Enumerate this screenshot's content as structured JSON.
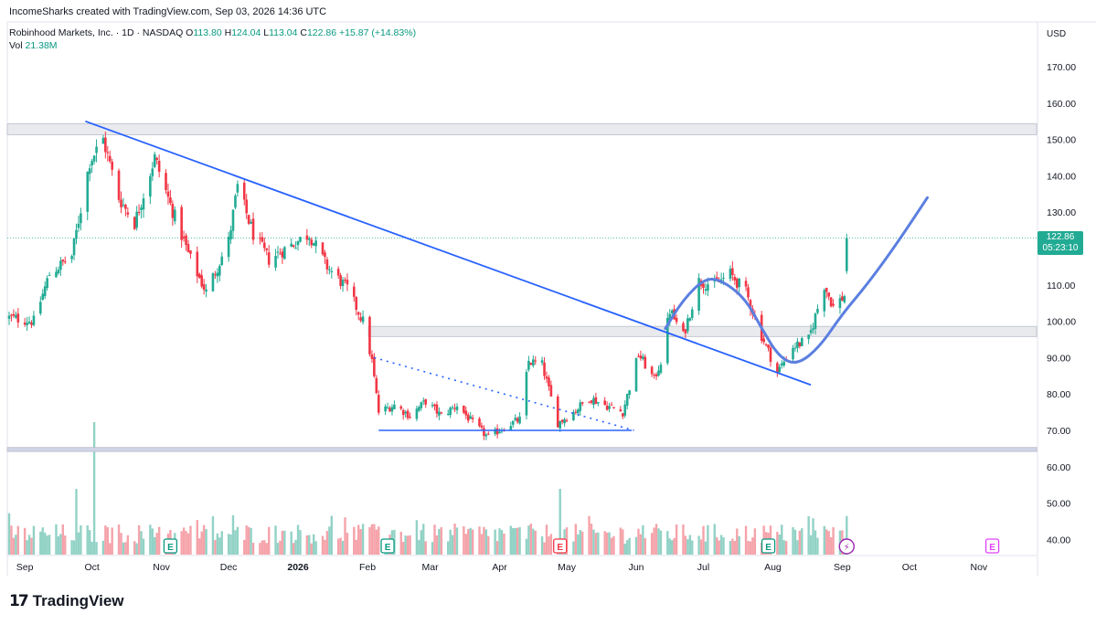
{
  "header": {
    "attribution": "IncomeSharks created with TradingView.com, Sep 03, 2026 14:36 UTC"
  },
  "legend": {
    "symbol": "Robinhood Markets, Inc. · 1D · NASDAQ",
    "o_label": "O",
    "o_value": "113.80",
    "h_label": "H",
    "h_value": "124.04",
    "l_label": "L",
    "l_value": "113.04",
    "c_label": "C",
    "c_value": "122.86",
    "change": "+15.87 (+14.83%)",
    "vol_label": "Vol",
    "vol_value": "21.38M"
  },
  "price_axis": {
    "currency": "USD",
    "last_price": "122.86",
    "countdown": "05:23:10"
  },
  "brand": {
    "name": "TradingView"
  },
  "colors": {
    "up": "#22ab94",
    "down": "#f23645",
    "trendline": "#2962ff",
    "freehand": "#5b7fe0",
    "zone": "#d1d4dc",
    "earnings": "#089981",
    "dividend": "#e040fb"
  },
  "chart_data": {
    "type": "candlestick",
    "symbol": "Robinhood Markets, Inc.",
    "interval": "1D",
    "exchange": "NASDAQ",
    "y_axis": {
      "ticks": [
        40,
        50,
        60,
        70,
        80,
        90,
        100,
        110,
        120,
        130,
        140,
        150,
        160,
        170
      ],
      "tick_labels": [
        "40.00",
        "50.00",
        "60.00",
        "70.00",
        "80.00",
        "90.00",
        "100.00",
        "110.00",
        "120.00",
        "130.00",
        "140.00",
        "150.00",
        "160.00",
        "170.00"
      ],
      "ylim": [
        36,
        178
      ]
    },
    "x_axis": {
      "labels": [
        "Sep",
        "Oct",
        "Nov",
        "Dec",
        "2026",
        "Feb",
        "Mar",
        "Apr",
        "May",
        "Jun",
        "Jul",
        "Aug",
        "Sep",
        "Oct",
        "Nov"
      ],
      "first_label": "Sep",
      "first_label_index": 5,
      "months": [
        "2025-09",
        "2025-10",
        "2025-11",
        "2025-12",
        "2026-01",
        "2026-02",
        "2026-03",
        "2026-04",
        "2026-05",
        "2026-06",
        "2026-07",
        "2026-08",
        "2026-09",
        "2026-10",
        "2026-11"
      ]
    },
    "anchors": [
      {
        "date": "2025-08-25",
        "close": 101
      },
      {
        "date": "2025-09-05",
        "close": 100
      },
      {
        "date": "2025-09-12",
        "close": 113
      },
      {
        "date": "2025-09-22",
        "close": 118
      },
      {
        "date": "2025-09-30",
        "close": 144
      },
      {
        "date": "2025-10-06",
        "close": 150
      },
      {
        "date": "2025-10-13",
        "close": 134
      },
      {
        "date": "2025-10-20",
        "close": 127
      },
      {
        "date": "2025-10-29",
        "close": 145
      },
      {
        "date": "2025-11-05",
        "close": 132
      },
      {
        "date": "2025-11-14",
        "close": 117
      },
      {
        "date": "2025-11-21",
        "close": 108
      },
      {
        "date": "2025-12-01",
        "close": 122
      },
      {
        "date": "2025-12-05",
        "close": 137
      },
      {
        "date": "2025-12-12",
        "close": 124
      },
      {
        "date": "2025-12-19",
        "close": 117
      },
      {
        "date": "2025-12-29",
        "close": 121
      },
      {
        "date": "2026-01-06",
        "close": 124
      },
      {
        "date": "2026-01-14",
        "close": 115
      },
      {
        "date": "2026-01-23",
        "close": 109
      },
      {
        "date": "2026-01-30",
        "close": 100
      },
      {
        "date": "2026-02-03",
        "close": 89
      },
      {
        "date": "2026-02-06",
        "close": 75
      },
      {
        "date": "2026-02-13",
        "close": 77
      },
      {
        "date": "2026-02-20",
        "close": 74
      },
      {
        "date": "2026-02-27",
        "close": 78
      },
      {
        "date": "2026-03-06",
        "close": 74
      },
      {
        "date": "2026-03-13",
        "close": 77
      },
      {
        "date": "2026-03-20",
        "close": 72
      },
      {
        "date": "2026-03-27",
        "close": 68
      },
      {
        "date": "2026-04-03",
        "close": 71
      },
      {
        "date": "2026-04-10",
        "close": 73
      },
      {
        "date": "2026-04-14",
        "close": 89
      },
      {
        "date": "2026-04-20",
        "close": 88
      },
      {
        "date": "2026-04-27",
        "close": 72
      },
      {
        "date": "2026-05-04",
        "close": 75
      },
      {
        "date": "2026-05-11",
        "close": 79
      },
      {
        "date": "2026-05-18",
        "close": 77
      },
      {
        "date": "2026-05-26",
        "close": 75
      },
      {
        "date": "2026-06-02",
        "close": 91
      },
      {
        "date": "2026-06-09",
        "close": 84
      },
      {
        "date": "2026-06-12",
        "close": 89
      },
      {
        "date": "2026-06-16",
        "close": 103
      },
      {
        "date": "2026-06-22",
        "close": 96
      },
      {
        "date": "2026-06-29",
        "close": 111
      },
      {
        "date": "2026-07-06",
        "close": 110
      },
      {
        "date": "2026-07-13",
        "close": 113
      },
      {
        "date": "2026-07-20",
        "close": 108
      },
      {
        "date": "2026-07-27",
        "close": 96
      },
      {
        "date": "2026-08-03",
        "close": 86
      },
      {
        "date": "2026-08-10",
        "close": 93
      },
      {
        "date": "2026-08-17",
        "close": 95
      },
      {
        "date": "2026-08-24",
        "close": 110
      },
      {
        "date": "2026-08-28",
        "close": 104
      },
      {
        "date": "2026-09-02",
        "close": 107
      },
      {
        "date": "2026-09-03",
        "close": 122.86
      }
    ],
    "last_candle": {
      "date": "2026-09-03",
      "open": 113.8,
      "high": 124.04,
      "low": 113.04,
      "close": 122.86,
      "change": 15.87,
      "change_pct": 14.83
    },
    "volume": {
      "last": "21.38M",
      "spike_dates": [
        "2025-09-24",
        "2025-10-02",
        "2026-04-28"
      ]
    },
    "levels": [
      {
        "kind": "horizontal-zone",
        "from": 151.3,
        "to": 154.3
      },
      {
        "kind": "horizontal-zone",
        "from": 95.8,
        "to": 98.6
      },
      {
        "kind": "horizontal-zone",
        "from": 64.2,
        "to": 65.3
      },
      {
        "kind": "horizontal-line",
        "value": 70.0,
        "start": "2026-02-06",
        "end": "2026-05-30"
      }
    ],
    "trendlines": [
      {
        "start_date": "2025-09-28",
        "start_price": 155,
        "end_date": "2026-08-18",
        "end_price": 82.5,
        "style": "solid"
      },
      {
        "start_date": "2026-02-04",
        "start_price": 90,
        "end_date": "2026-05-31",
        "end_price": 70,
        "style": "dotted"
      }
    ],
    "freehand_path": [
      {
        "date": "2026-06-14",
        "price": 98
      },
      {
        "date": "2026-06-22",
        "price": 106
      },
      {
        "date": "2026-07-02",
        "price": 112
      },
      {
        "date": "2026-07-10",
        "price": 111
      },
      {
        "date": "2026-07-20",
        "price": 106
      },
      {
        "date": "2026-07-27",
        "price": 98
      },
      {
        "date": "2026-08-04",
        "price": 90
      },
      {
        "date": "2026-08-12",
        "price": 88
      },
      {
        "date": "2026-08-22",
        "price": 93
      },
      {
        "date": "2026-09-01",
        "price": 102
      },
      {
        "date": "2026-09-12",
        "price": 110
      },
      {
        "date": "2026-09-25",
        "price": 121
      },
      {
        "date": "2026-10-09",
        "price": 134
      }
    ],
    "event_markers": [
      {
        "type": "earnings",
        "date": "2025-11-05",
        "label": "E"
      },
      {
        "type": "earnings",
        "date": "2026-02-10",
        "label": "E"
      },
      {
        "type": "dividend",
        "date": "2026-04-28",
        "label": "E"
      },
      {
        "type": "earnings",
        "date": "2026-07-30",
        "label": "E"
      },
      {
        "type": "split",
        "date": "2026-09-03",
        "label": "⚡"
      },
      {
        "type": "dividend",
        "date": "2026-11-07",
        "label": "E"
      }
    ]
  }
}
